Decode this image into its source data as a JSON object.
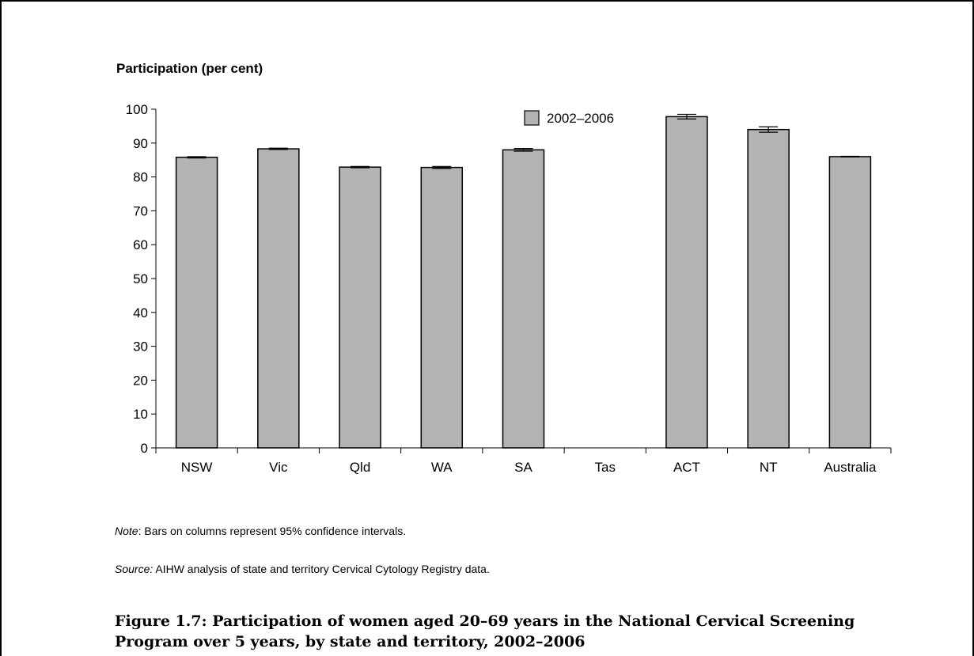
{
  "chart_data": {
    "type": "bar",
    "ylabel": "Participation (per cent)",
    "ylim": [
      0,
      100
    ],
    "yticks": [
      "0",
      "10",
      "20",
      "30",
      "40",
      "50",
      "60",
      "70",
      "80",
      "90",
      "100"
    ],
    "categories": [
      "NSW",
      "Vic",
      "Qld",
      "WA",
      "SA",
      "Tas",
      "ACT",
      "NT",
      "Australia"
    ],
    "series": [
      {
        "name": "2002–2006",
        "values": [
          85.8,
          88.3,
          82.9,
          82.8,
          88.0,
          null,
          97.8,
          94.0,
          86.0
        ],
        "ci_low": [
          85.6,
          88.1,
          82.7,
          82.5,
          87.6,
          null,
          97.1,
          93.2,
          85.9
        ],
        "ci_high": [
          86.0,
          88.5,
          83.1,
          83.1,
          88.4,
          null,
          98.5,
          94.8,
          86.1
        ]
      }
    ],
    "bar_color": "#b3b3b3",
    "legend_position": "top-center",
    "grid": false
  },
  "notes": {
    "note_label": "Note",
    "note_text": ": Bars on columns represent 95% confidence intervals.",
    "source_label": "Source:",
    "source_text": " AIHW analysis of state and territory Cervical Cytology Registry data."
  },
  "caption": {
    "line1": "Figure 1.7: Participation of women aged 20–69 years in the National Cervical Screening",
    "line2": "Program over 5 years, by state and territory, 2002–2006"
  }
}
